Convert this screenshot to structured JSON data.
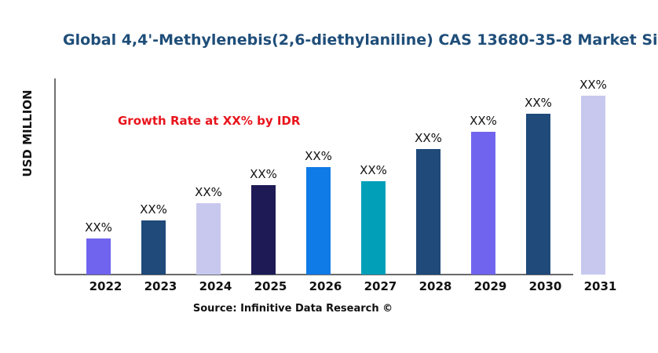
{
  "chart_data": {
    "type": "bar",
    "title": "Global 4,4'-Methylenebis(2,6-diethylaniline) CAS 13680-35-8 Market Si",
    "ylabel": "USD MILLION",
    "xlabel": "",
    "annotation": "Growth Rate at XX% by IDR",
    "source": "Source: Infinitive Data Research ©",
    "categories": [
      "2022",
      "2023",
      "2024",
      "2025",
      "2026",
      "2027",
      "2028",
      "2029",
      "2030",
      "2031"
    ],
    "values": [
      46,
      69,
      91,
      114,
      137,
      119,
      160,
      182,
      205,
      228
    ],
    "data_labels": [
      "XX%",
      "XX%",
      "XX%",
      "XX%",
      "XX%",
      "XX%",
      "XX%",
      "XX%",
      "XX%",
      "XX%"
    ],
    "colors": [
      "#7064ee",
      "#1f4a7a",
      "#c8c8ee",
      "#1e1a55",
      "#0f7be6",
      "#02a0b8",
      "#1f4a7a",
      "#7064ee",
      "#1f4a7a",
      "#c8c8ee"
    ],
    "ylim": [
      0,
      250
    ],
    "grid": false,
    "y_ticks_shown": false,
    "title_color": "#1f4e79",
    "annotation_color": "#e8141c"
  }
}
